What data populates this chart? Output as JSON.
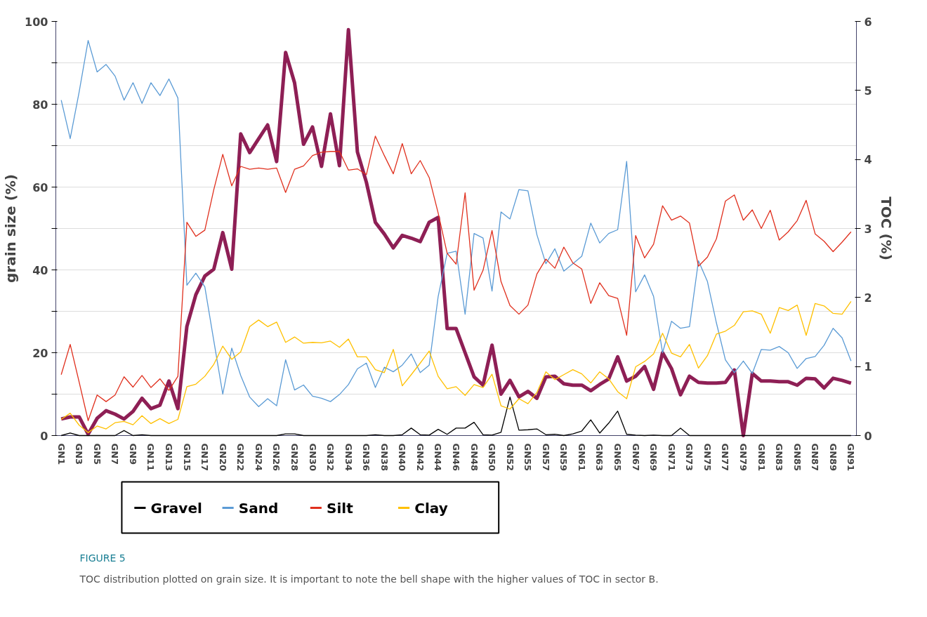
{
  "chart_data": {
    "type": "line",
    "categories": [
      "GN1",
      null,
      "GN3",
      null,
      "GN5",
      null,
      "GN7",
      null,
      "GN9",
      null,
      "GN11",
      null,
      "GN13",
      null,
      "GN15",
      null,
      "GN17",
      null,
      "GN20",
      null,
      "GN22",
      null,
      "GN24",
      null,
      "GN26",
      null,
      "GN28",
      null,
      "GN30",
      null,
      "GN32",
      null,
      "GN34",
      null,
      "GN36",
      null,
      "GN38",
      null,
      "GN40",
      null,
      "GN42",
      null,
      "GN44",
      null,
      "GN46",
      null,
      "GN48",
      null,
      "GN50",
      null,
      "GN52",
      null,
      "GN55",
      null,
      "GN57",
      null,
      "GN59",
      null,
      "GN61",
      null,
      "GN63",
      null,
      "GN65",
      null,
      "GN67",
      null,
      "GN69",
      null,
      "GN71",
      null,
      "GN73",
      null,
      "GN75",
      null,
      "GN77",
      null,
      "GN79",
      null,
      "GN81",
      null,
      "GN83",
      null,
      "GN85",
      null,
      "GN87",
      null,
      "GN89",
      null,
      "GN91"
    ],
    "ylabel": "grain size (%)",
    "y2label": "TOC (%)",
    "ylim": [
      0,
      100
    ],
    "yticks": [
      0,
      {
        "value": 10,
        "label": null
      },
      20,
      {
        "value": 30,
        "label": null
      },
      40,
      {
        "value": 50,
        "label": null
      },
      60,
      {
        "value": 70,
        "label": null
      },
      80,
      {
        "value": 90,
        "label": null
      },
      100
    ],
    "y2lim": [
      0,
      6
    ],
    "y2ticks": [
      0,
      1,
      2,
      3,
      4,
      5,
      6
    ],
    "grid": "y",
    "legend": "bottom",
    "annotations": [
      "FIGURE 5",
      "TOC distribution plotted on grain size. It is important to note the bell shape with the higher values of TOC in sector B."
    ],
    "series": [
      {
        "name": "Gravel",
        "color": "#000000",
        "values": [
          0,
          0.6,
          0,
          0,
          0,
          0,
          0,
          1.2,
          0,
          0.2,
          0,
          0,
          0,
          0,
          0,
          0,
          0,
          0,
          0,
          0,
          0,
          0,
          0,
          0,
          0,
          0.4,
          0.4,
          0,
          0,
          0,
          0,
          0,
          0,
          0,
          0,
          0.2,
          0,
          0,
          0.2,
          1.8,
          0.2,
          0.1,
          1.5,
          0.3,
          1.8,
          1.8,
          3.2,
          0.2,
          0.1,
          0.8,
          9.3,
          1.3,
          1.4,
          1.6,
          0.2,
          0.3,
          0,
          0.4,
          1.1,
          3.8,
          0.6,
          3,
          5.9,
          0.3,
          0.1,
          0,
          0.1,
          0,
          0,
          1.8,
          0,
          0,
          0,
          0,
          0,
          0,
          0,
          0,
          0,
          0,
          0,
          0,
          0,
          0,
          0,
          0,
          0,
          0,
          0
        ]
      },
      {
        "name": "Sand",
        "color": "#5b9bd5",
        "values": [
          81,
          71.7,
          83,
          95.4,
          87.8,
          89.6,
          86.8,
          81,
          85.2,
          80.2,
          85.2,
          82.1,
          86.1,
          81.5,
          36.3,
          39.2,
          35.9,
          22.9,
          10,
          21.1,
          14.5,
          9.3,
          7,
          8.9,
          7.2,
          18.3,
          11,
          12.2,
          9.5,
          9,
          8.2,
          9.9,
          12.3,
          16.1,
          17.5,
          11.6,
          16.5,
          15.4,
          17,
          19.7,
          15.2,
          17,
          33.6,
          44,
          44.5,
          29.3,
          48.8,
          47.7,
          34.9,
          54,
          52.3,
          59.4,
          59.1,
          48.5,
          41.5,
          45.1,
          39.7,
          41.5,
          43.3,
          51.3,
          46.5,
          48.8,
          49.7,
          66.2,
          34.7,
          38.8,
          33.6,
          20,
          27.6,
          25.9,
          26.3,
          42.2,
          37.2,
          27.2,
          18.3,
          15.2,
          18,
          15,
          20.8,
          20.6,
          21.5,
          20,
          16.2,
          18.6,
          19.1,
          21.8,
          25.9,
          23.6,
          18
        ]
      },
      {
        "name": "Silt",
        "color": "#e0301e",
        "values": [
          14.7,
          22,
          12.9,
          3.6,
          9.8,
          8.2,
          9.8,
          14.2,
          11.7,
          14.5,
          11.6,
          13.7,
          10.9,
          14.3,
          51.5,
          48.1,
          49.6,
          59.4,
          67.9,
          60.3,
          65,
          64.3,
          64.6,
          64.3,
          64.6,
          58.7,
          64.3,
          65.1,
          67.6,
          68.4,
          68.6,
          68.6,
          64.1,
          64.4,
          63,
          72.3,
          67.6,
          63.2,
          70.5,
          63.2,
          66.4,
          62.3,
          53.7,
          44,
          41.4,
          58.6,
          35.1,
          39.9,
          49.5,
          37.2,
          31.4,
          29.3,
          31.5,
          39,
          42.6,
          40.4,
          45.5,
          41.7,
          40.2,
          31.9,
          36.9,
          33.8,
          33.1,
          24.2,
          48.3,
          42.9,
          46.2,
          55.5,
          52,
          53,
          51.3,
          40.9,
          43.1,
          47.5,
          56.6,
          58.1,
          52,
          54.5,
          50,
          54.4,
          47.2,
          49.2,
          51.9,
          56.8,
          48.7,
          46.9,
          44.4,
          46.7,
          49.2
        ]
      },
      {
        "name": "Clay",
        "color": "#ffc000",
        "values": [
          3.9,
          5.4,
          2.5,
          0.7,
          2.3,
          1.6,
          3.1,
          3.4,
          2.6,
          4.8,
          2.9,
          4.1,
          2.9,
          3.9,
          11.8,
          12.4,
          14.3,
          17.2,
          21.6,
          18.4,
          20.2,
          26.3,
          27.9,
          26.3,
          27.4,
          22.5,
          23.8,
          22.3,
          22.5,
          22.4,
          22.8,
          21.3,
          23.3,
          19,
          19,
          15.9,
          15.2,
          20.8,
          12,
          14.7,
          17.5,
          20.4,
          14.3,
          11.3,
          11.8,
          9.7,
          12.3,
          11.6,
          14.8,
          7.2,
          6.4,
          8.9,
          7.7,
          10.4,
          15.4,
          13.5,
          14.7,
          15.9,
          14.9,
          12.7,
          15.4,
          13.7,
          10.6,
          8.9,
          16.6,
          17.9,
          19.7,
          24.7,
          19.9,
          19,
          22,
          16.3,
          19.3,
          24.5,
          25.2,
          26.6,
          29.9,
          30.1,
          29.3,
          24.7,
          30.9,
          30.2,
          31.5,
          24.2,
          31.9,
          31.3,
          29.5,
          29.3,
          32.4
        ]
      },
      {
        "color": "#8e1f55",
        "axis": "y2",
        "values": [
          0.24,
          0.27,
          0.27,
          0.02,
          0.25,
          0.36,
          0.31,
          0.24,
          0.35,
          0.54,
          0.39,
          0.44,
          0.79,
          0.39,
          1.58,
          2.04,
          2.31,
          2.41,
          2.94,
          2.41,
          4.37,
          4.1,
          4.3,
          4.5,
          3.97,
          5.55,
          5.11,
          4.22,
          4.47,
          3.9,
          4.66,
          3.91,
          5.88,
          4.11,
          3.67,
          3.09,
          2.92,
          2.72,
          2.9,
          2.86,
          2.81,
          3.09,
          3.16,
          1.55,
          1.55,
          1.2,
          0.85,
          0.73,
          1.31,
          0.6,
          0.8,
          0.56,
          0.64,
          0.54,
          0.85,
          0.86,
          0.75,
          0.73,
          0.73,
          0.65,
          0.74,
          0.82,
          1.14,
          0.79,
          0.86,
          1.0,
          0.67,
          1.2,
          0.97,
          0.59,
          0.86,
          0.77,
          0.76,
          0.76,
          0.77,
          0.95,
          0,
          0.9,
          0.79,
          0.79,
          0.78,
          0.78,
          0.73,
          0.83,
          0.82,
          0.69,
          0.83,
          0.8,
          0.76
        ]
      }
    ]
  }
}
